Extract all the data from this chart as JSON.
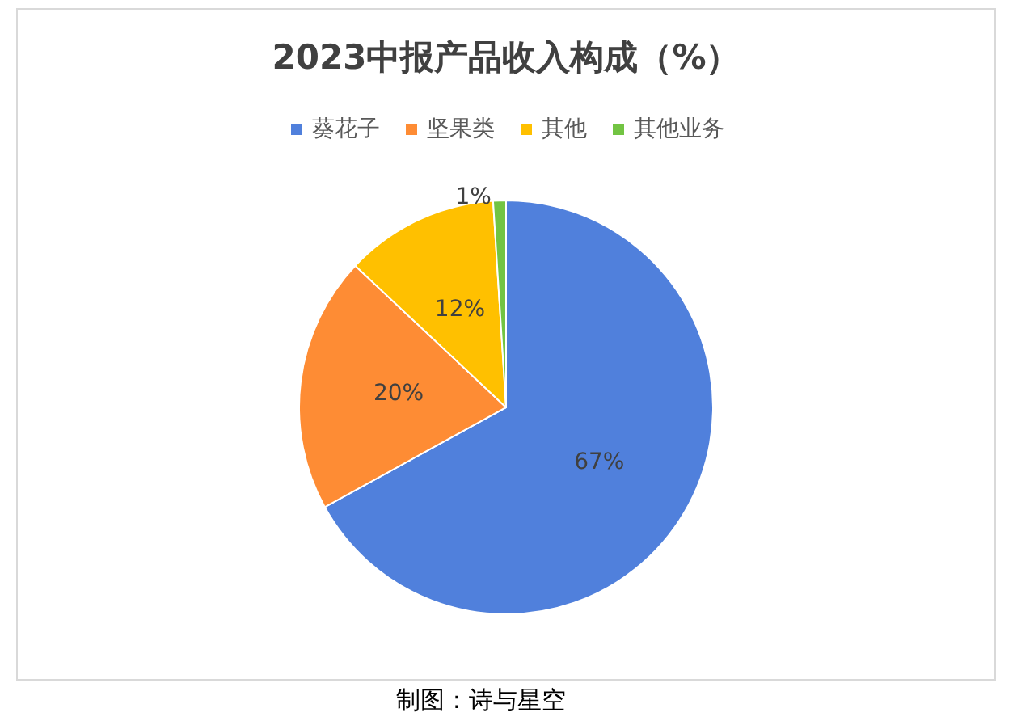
{
  "chart_data": {
    "type": "pie",
    "title": "2023中报产品收入构成（%）",
    "categories": [
      "葵花子",
      "坚果类",
      "其他",
      "其他业务"
    ],
    "values": [
      67,
      20,
      12,
      1
    ],
    "colors": [
      "#5080dc",
      "#fe8c34",
      "#ffc000",
      "#72c443"
    ],
    "value_labels": [
      "67%",
      "20%",
      "12%",
      "1%"
    ],
    "legend": "top",
    "annotations": [
      "制图：诗与星空"
    ]
  }
}
